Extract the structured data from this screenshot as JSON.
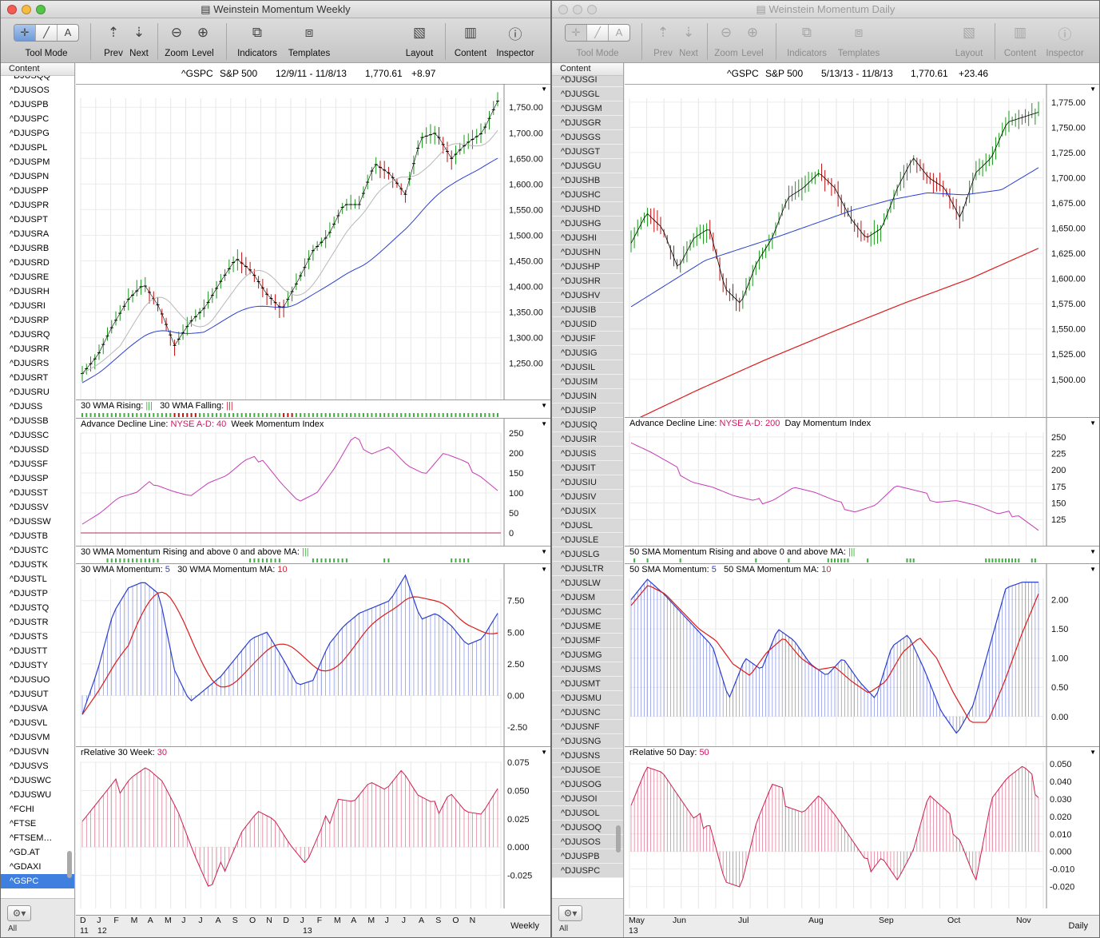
{
  "left": {
    "title": "Weinstein Momentum Weekly",
    "toolbar": {
      "tool_mode": "Tool Mode",
      "prev": "Prev",
      "next": "Next",
      "zoom": "Zoom",
      "level": "Level",
      "indicators": "Indicators",
      "templates": "Templates",
      "layout": "Layout",
      "content": "Content",
      "inspector": "Inspector"
    },
    "sidebar": {
      "header": "Content",
      "items": [
        "^DJUSQQ",
        "^DJUSOS",
        "^DJUSPB",
        "^DJUSPC",
        "^DJUSPG",
        "^DJUSPL",
        "^DJUSPM",
        "^DJUSPN",
        "^DJUSPP",
        "^DJUSPR",
        "^DJUSPT",
        "^DJUSRA",
        "^DJUSRB",
        "^DJUSRD",
        "^DJUSRE",
        "^DJUSRH",
        "^DJUSRI",
        "^DJUSRP",
        "^DJUSRQ",
        "^DJUSRR",
        "^DJUSRS",
        "^DJUSRT",
        "^DJUSRU",
        "^DJUSS",
        "^DJUSSB",
        "^DJUSSC",
        "^DJUSSD",
        "^DJUSSF",
        "^DJUSSP",
        "^DJUSST",
        "^DJUSSV",
        "^DJUSSW",
        "^DJUSTB",
        "^DJUSTC",
        "^DJUSTK",
        "^DJUSTL",
        "^DJUSTP",
        "^DJUSTQ",
        "^DJUSTR",
        "^DJUSTS",
        "^DJUSTT",
        "^DJUSTY",
        "^DJUSUO",
        "^DJUSUT",
        "^DJUSVA",
        "^DJUSVL",
        "^DJUSVM",
        "^DJUSVN",
        "^DJUSVS",
        "^DJUSWC",
        "^DJUSWU",
        "^FCHI",
        "^FTSE",
        "^FTSEM…",
        "^GD.AT",
        "^GDAXI",
        "^GSPC"
      ],
      "selected": "^GSPC",
      "footer_label": "All"
    },
    "header": {
      "symbol": "^GSPC",
      "name": "S&P 500",
      "range": "12/9/11 - 11/8/13",
      "last": "1,770.61",
      "change": "+8.97"
    },
    "panes": {
      "price_axis": [
        "1,750.00",
        "1,700.00",
        "1,650.00",
        "1,600.00",
        "1,550.00",
        "1,500.00",
        "1,450.00",
        "1,400.00",
        "1,350.00",
        "1,300.00",
        "1,250.00"
      ],
      "wma_label": "30 WMA Rising:",
      "wma_rising_mark": "|||",
      "wma_falling_label": "30 WMA Falling:",
      "wma_falling_mark": "|||",
      "adl_label": "Advance Decline Line:",
      "adl_series": "NYSE A-D",
      "adl_sep": ":",
      "adl_val": "40",
      "adl_name": "Week Momentum Index",
      "adl_axis": [
        "250",
        "200",
        "150",
        "100",
        "50",
        "0"
      ],
      "mom_signal_label": "30 WMA Momentum Rising and above 0 and above MA:",
      "mom_signal_mark": "|||",
      "mom_label": "30 WMA Momentum:",
      "mom_val": "5",
      "mom_ma_label": "30 WMA Momentum MA:",
      "mom_ma_val": "10",
      "mom_axis": [
        "7.50",
        "5.00",
        "2.50",
        "0.00",
        "-2.50"
      ],
      "rel_label": "rRelative 30 Week:",
      "rel_val": "30",
      "rel_axis": [
        "0.075",
        "0.050",
        "0.025",
        "0.000",
        "-0.025"
      ]
    },
    "xaxis": {
      "months": [
        "D",
        "J",
        "F",
        "M",
        "A",
        "M",
        "J",
        "J",
        "A",
        "S",
        "O",
        "N",
        "D",
        "J",
        "F",
        "M",
        "A",
        "M",
        "J",
        "J",
        "A",
        "S",
        "O",
        "N"
      ],
      "years": [
        "11",
        "12",
        "13"
      ],
      "period": "Weekly"
    }
  },
  "right": {
    "title": "Weinstein Momentum Daily",
    "toolbar": {
      "tool_mode": "Tool Mode",
      "prev": "Prev",
      "next": "Next",
      "zoom": "Zoom",
      "level": "Level",
      "indicators": "Indicators",
      "templates": "Templates",
      "layout": "Layout",
      "content": "Content",
      "inspector": "Inspector"
    },
    "sidebar": {
      "header": "Content",
      "items": [
        "^DJUSGI",
        "^DJUSGL",
        "^DJUSGM",
        "^DJUSGR",
        "^DJUSGS",
        "^DJUSGT",
        "^DJUSGU",
        "^DJUSHB",
        "^DJUSHC",
        "^DJUSHD",
        "^DJUSHG",
        "^DJUSHI",
        "^DJUSHN",
        "^DJUSHP",
        "^DJUSHR",
        "^DJUSHV",
        "^DJUSIB",
        "^DJUSID",
        "^DJUSIF",
        "^DJUSIG",
        "^DJUSIL",
        "^DJUSIM",
        "^DJUSIN",
        "^DJUSIP",
        "^DJUSIQ",
        "^DJUSIR",
        "^DJUSIS",
        "^DJUSIT",
        "^DJUSIU",
        "^DJUSIV",
        "^DJUSIX",
        "^DJUSL",
        "^DJUSLE",
        "^DJUSLG",
        "^DJUSLTR",
        "^DJUSLW",
        "^DJUSM",
        "^DJUSMC",
        "^DJUSME",
        "^DJUSMF",
        "^DJUSMG",
        "^DJUSMS",
        "^DJUSMT",
        "^DJUSMU",
        "^DJUSNC",
        "^DJUSNF",
        "^DJUSNG",
        "^DJUSNS",
        "^DJUSOE",
        "^DJUSOG",
        "^DJUSOI",
        "^DJUSOL",
        "^DJUSOQ",
        "^DJUSOS",
        "^DJUSPB",
        "^DJUSPC"
      ],
      "footer_label": "All"
    },
    "header": {
      "symbol": "^GSPC",
      "name": "S&P 500",
      "range": "5/13/13 - 11/8/13",
      "last": "1,770.61",
      "change": "+23.46"
    },
    "panes": {
      "price_axis": [
        "1,775.00",
        "1,750.00",
        "1,725.00",
        "1,700.00",
        "1,675.00",
        "1,650.00",
        "1,625.00",
        "1,600.00",
        "1,575.00",
        "1,550.00",
        "1,525.00",
        "1,500.00"
      ],
      "adl_label": "Advance Decline Line:",
      "adl_series": "NYSE A-D",
      "adl_sep": ":",
      "adl_val": "200",
      "adl_name": "Day Momentum Index",
      "adl_axis": [
        "250",
        "225",
        "200",
        "175",
        "150",
        "125"
      ],
      "mom_signal_label": "50 SMA Momentum Rising and above 0 and above MA:",
      "mom_signal_mark": "|||",
      "mom_label": "50 SMA Momentum:",
      "mom_val": "5",
      "mom_ma_label": "50 SMA Momentum MA:",
      "mom_ma_val": "10",
      "mom_axis": [
        "2.00",
        "1.50",
        "1.00",
        "0.50",
        "0.00"
      ],
      "rel_label": "rRelative 50 Day:",
      "rel_val": "50",
      "rel_axis": [
        "0.050",
        "0.040",
        "0.030",
        "0.020",
        "0.010",
        "0.000",
        "-0.010",
        "-0.020"
      ]
    },
    "xaxis": {
      "months": [
        "May",
        "Jun",
        "Jul",
        "Aug",
        "Sep",
        "Oct",
        "Nov"
      ],
      "years": [
        "13"
      ],
      "period": "Daily"
    }
  },
  "colors": {
    "price_up": "#1a9a1a",
    "price_down": "#c01010",
    "ma_blue": "#2b3fd0",
    "ma_gray": "#b8b8b8",
    "ma_red": "#dc1b1b",
    "adl": "#c63cb4",
    "rel": "#cc2050"
  }
}
